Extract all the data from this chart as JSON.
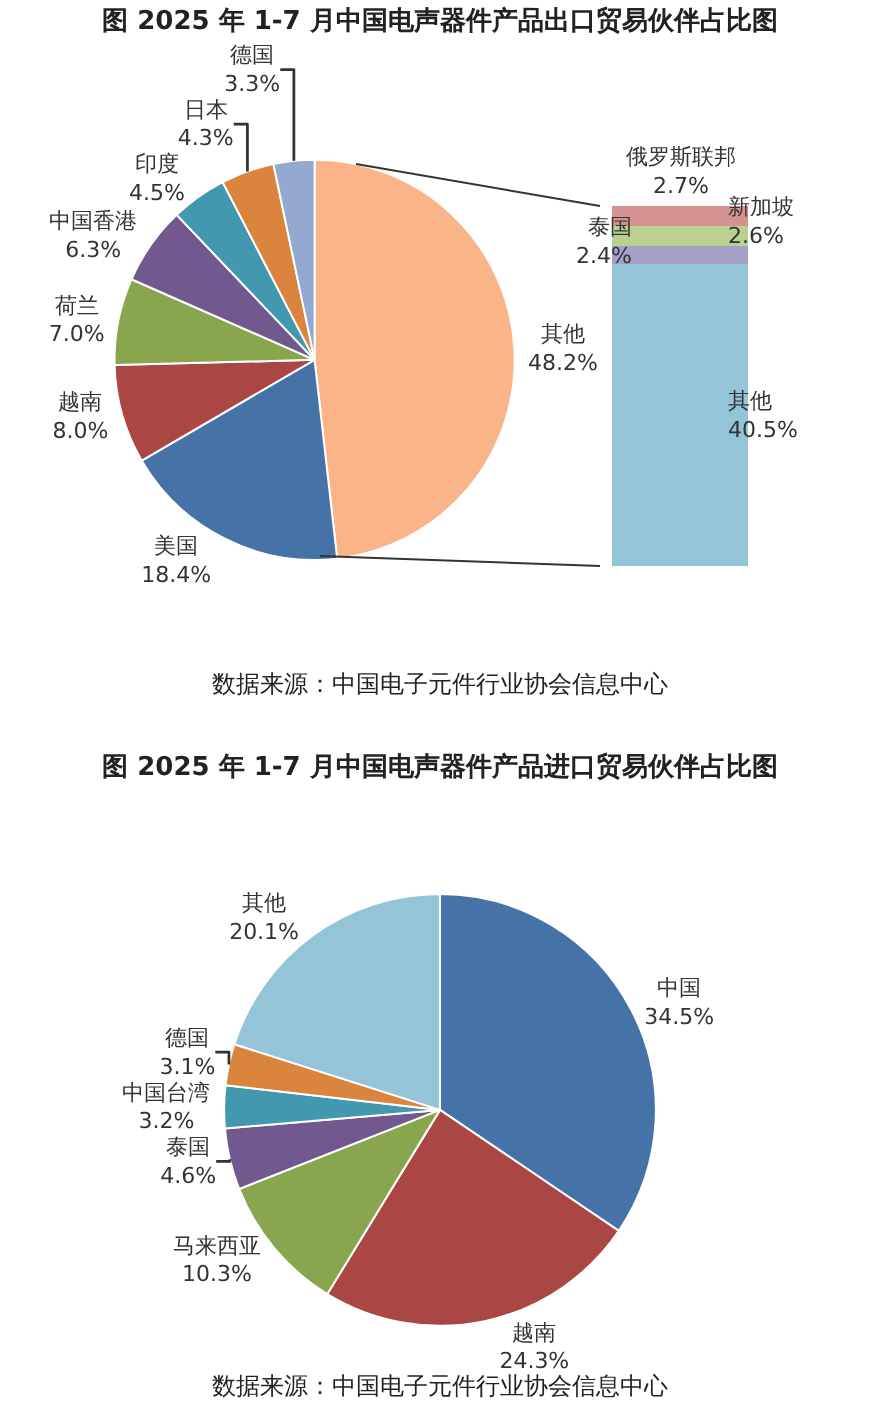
{
  "chart_data": [
    {
      "type": "pie",
      "title": "图 2025 年 1-7 月中国电声器件产品出口贸易伙伴占比图",
      "categories": [
        "其他",
        "美国",
        "越南",
        "荷兰",
        "中国香港",
        "印度",
        "日本",
        "德国"
      ],
      "values": [
        48.2,
        18.4,
        8.0,
        7.0,
        6.3,
        4.5,
        4.3,
        3.3
      ],
      "value_labels": [
        "48.2%",
        "18.4%",
        "8.0%",
        "7.0%",
        "6.3%",
        "4.5%",
        "4.3%",
        "3.3%"
      ],
      "colors": [
        "#fab487",
        "#4572a7",
        "#aa4643",
        "#89a54e",
        "#71588f",
        "#4198af",
        "#db843d",
        "#93a9cf"
      ],
      "annotations": [
        "数据来源：中国电子元件行业协会信息中心"
      ]
    },
    {
      "type": "bar",
      "stacked": true,
      "categories": [
        null
      ],
      "series": [
        {
          "name": "其他",
          "color": "#93c4d8",
          "values": [
            40.5
          ],
          "value_labels": [
            "40.5%"
          ]
        },
        {
          "name": "泰国",
          "color": "#a6a0c6",
          "values": [
            2.4
          ],
          "value_labels": [
            "2.4%"
          ]
        },
        {
          "name": "新加坡",
          "color": "#b9d08e",
          "values": [
            2.6
          ],
          "value_labels": [
            "2.6%"
          ]
        },
        {
          "name": "俄罗斯联邦",
          "color": "#d39290",
          "values": [
            2.7
          ],
          "value_labels": [
            "2.7%"
          ]
        }
      ]
    },
    {
      "type": "pie",
      "title": "图 2025 年 1-7 月中国电声器件产品进口贸易伙伴占比图",
      "categories": [
        "中国",
        "越南",
        "马来西亚",
        "泰国",
        "中国台湾",
        "德国",
        "其他"
      ],
      "values": [
        34.5,
        24.3,
        10.3,
        4.6,
        3.2,
        3.1,
        20.1
      ],
      "value_labels": [
        "34.5%",
        "24.3%",
        "10.3%",
        "4.6%",
        "3.2%",
        "3.1%",
        "20.1%"
      ],
      "colors": [
        "#4572a7",
        "#aa4643",
        "#89a54e",
        "#71588f",
        "#4198af",
        "#db843d",
        "#93c4d8"
      ],
      "annotations": [
        "数据来源：中国电子元件行业协会信息中心"
      ]
    }
  ]
}
